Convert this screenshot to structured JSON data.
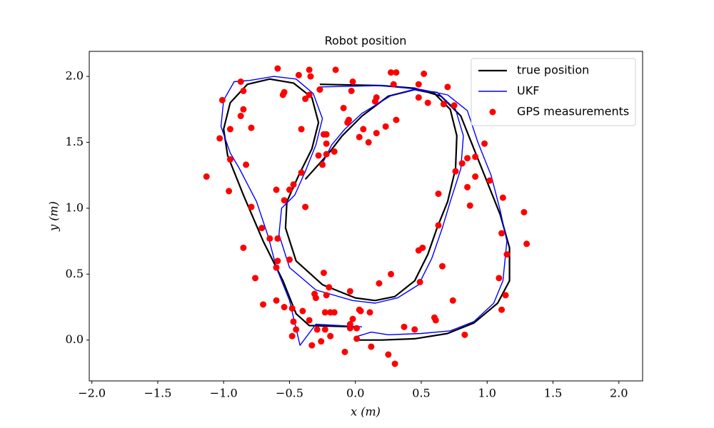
{
  "chart_data": {
    "type": "line",
    "title": "Robot position",
    "xlabel": "x (m)",
    "ylabel": "y (m)",
    "xlim": [
      -2.02,
      2.18
    ],
    "ylim": [
      -0.31,
      2.19
    ],
    "xticks": [
      {
        "value": -2.0,
        "label": "−2.0"
      },
      {
        "value": -1.5,
        "label": "−1.5"
      },
      {
        "value": -1.0,
        "label": "−1.0"
      },
      {
        "value": -0.5,
        "label": "−0.5"
      },
      {
        "value": 0.0,
        "label": "0.0"
      },
      {
        "value": 0.5,
        "label": "0.5"
      },
      {
        "value": 1.0,
        "label": "1.0"
      },
      {
        "value": 1.5,
        "label": "1.5"
      },
      {
        "value": 2.0,
        "label": "2.0"
      }
    ],
    "yticks": [
      {
        "value": 0.0,
        "label": "0.0"
      },
      {
        "value": 0.5,
        "label": "0.5"
      },
      {
        "value": 1.0,
        "label": "1.0"
      },
      {
        "value": 1.5,
        "label": "1.5"
      },
      {
        "value": 2.0,
        "label": "2.0"
      }
    ],
    "legend": "upper right",
    "series": [
      {
        "name": "true position",
        "color": "#000000",
        "kind": "line",
        "x": [
          0.0,
          -0.35,
          -0.45,
          -0.55,
          -0.7,
          -0.85,
          -0.97,
          -1.0,
          -0.95,
          -0.82,
          -0.65,
          -0.47,
          -0.33,
          -0.28,
          -0.33,
          -0.43,
          -0.52,
          -0.53,
          -0.45,
          -0.25,
          0.0,
          0.15,
          0.3,
          0.45,
          0.55,
          0.62,
          0.7,
          0.76,
          0.77,
          0.72,
          0.6,
          0.45,
          0.25,
          0.05,
          -0.1,
          -0.2,
          -0.38,
          null,
          -0.27,
          0.2,
          0.45,
          0.65,
          0.8,
          0.9,
          1.0,
          1.1,
          1.17,
          1.17,
          1.08,
          0.9,
          0.7,
          0.45,
          0.2,
          0.0
        ],
        "y": [
          0.1,
          0.11,
          0.2,
          0.45,
          0.75,
          1.1,
          1.4,
          1.6,
          1.8,
          1.94,
          1.98,
          1.95,
          1.84,
          1.65,
          1.45,
          1.25,
          1.05,
          0.85,
          0.6,
          0.42,
          0.32,
          0.3,
          0.33,
          0.45,
          0.65,
          0.85,
          1.05,
          1.3,
          1.55,
          1.75,
          1.87,
          1.9,
          1.85,
          1.7,
          1.55,
          1.42,
          1.22,
          null,
          1.94,
          1.93,
          1.91,
          1.85,
          1.7,
          1.45,
          1.2,
          0.95,
          0.7,
          0.45,
          0.28,
          0.13,
          0.05,
          0.01,
          0.0,
          0.0
        ]
      },
      {
        "name": "UKF",
        "color": "#0000ff",
        "kind": "line",
        "x": [
          0.05,
          -0.3,
          -0.42,
          -0.5,
          -0.6,
          -0.66,
          -0.75,
          -0.88,
          -0.95,
          -1.02,
          -1.0,
          -0.92,
          -0.8,
          -0.62,
          -0.45,
          -0.32,
          -0.25,
          -0.3,
          -0.38,
          -0.46,
          -0.56,
          -0.58,
          -0.5,
          -0.3,
          -0.02,
          0.15,
          0.32,
          0.48,
          0.58,
          0.66,
          0.72,
          0.8,
          0.82,
          0.76,
          0.62,
          0.45,
          0.28,
          0.05,
          -0.08,
          -0.18,
          -0.25,
          null,
          -0.28,
          0.2,
          0.5,
          0.7,
          0.85,
          0.93,
          1.03,
          1.1,
          1.15,
          1.12,
          1.05,
          0.9,
          0.72,
          0.5,
          0.25,
          0.12,
          0.02
        ],
        "y": [
          0.1,
          0.12,
          -0.04,
          0.3,
          0.55,
          0.78,
          1.05,
          1.3,
          1.42,
          1.62,
          1.82,
          1.96,
          1.97,
          2.0,
          1.98,
          1.87,
          1.68,
          1.48,
          1.28,
          1.1,
          1.0,
          0.8,
          0.55,
          0.38,
          0.3,
          0.28,
          0.32,
          0.42,
          0.62,
          0.85,
          1.05,
          1.3,
          1.55,
          1.75,
          1.88,
          1.9,
          1.86,
          1.72,
          1.6,
          1.48,
          1.34,
          null,
          1.92,
          1.93,
          1.9,
          1.86,
          1.74,
          1.5,
          1.25,
          0.98,
          0.75,
          0.45,
          0.28,
          0.14,
          0.07,
          0.05,
          0.04,
          0.06,
          0.03
        ]
      },
      {
        "name": "GPS measurements",
        "color": "#ff0000",
        "kind": "scatter",
        "x": [
          -1.13,
          -0.59,
          -0.87,
          -1.01,
          -0.85,
          -0.85,
          -0.87,
          -0.95,
          -0.79,
          -1.03,
          -0.95,
          -0.83,
          -0.96,
          -0.79,
          -0.71,
          -0.85,
          -0.65,
          -0.6,
          -0.54,
          -0.59,
          -0.76,
          -0.59,
          -0.5,
          -0.6,
          -0.7,
          -0.6,
          -0.54,
          -0.48,
          -0.47,
          -0.48,
          -0.45,
          -0.4,
          -0.35,
          -0.33,
          -0.29,
          -0.26,
          -0.19,
          -0.19,
          -0.16,
          -0.23,
          -0.31,
          -0.3,
          -0.22,
          -0.2,
          -0.24,
          -0.23,
          -0.08,
          -0.04,
          -0.04,
          -0.02,
          0.03,
          0.04,
          0.01,
          0.01,
          0.11,
          0.12,
          -0.04,
          0.18,
          0.27,
          0.25,
          0.3,
          0.37,
          0.45,
          0.49,
          0.48,
          0.51,
          0.6,
          0.61,
          0.66,
          0.74,
          0.83,
          0.63,
          0.63,
          0.85,
          0.87,
          0.76,
          0.91,
          0.81,
          0.85,
          0.91,
          0.98,
          1.02,
          1.12,
          1.11,
          1.15,
          1.09,
          1.14,
          1.11,
          1.28,
          1.3,
          0.27,
          0.31,
          0.52,
          0.7,
          0.75,
          0.67,
          0.55,
          0.48,
          0.48,
          0.29,
          0.16,
          0.15,
          0.31,
          0.23,
          0.16,
          0.06,
          0.03,
          0.1,
          -0.05,
          -0.06,
          -0.09,
          -0.02,
          -0.03,
          -0.15,
          -0.35,
          -0.34,
          -0.43,
          -0.54,
          -0.55,
          -0.38,
          -0.35,
          -0.27,
          -0.41,
          -0.24,
          -0.22,
          -0.22,
          -0.28,
          -0.22,
          -0.16,
          -0.25,
          -0.41,
          -0.47,
          -0.5,
          -0.38
        ],
        "y": [
          1.24,
          2.06,
          1.96,
          1.82,
          1.89,
          1.75,
          1.7,
          1.6,
          1.61,
          1.53,
          1.37,
          1.33,
          1.13,
          1.01,
          0.85,
          0.7,
          0.77,
          1.14,
          1.06,
          0.77,
          0.47,
          0.6,
          0.61,
          0.3,
          0.27,
          0.55,
          0.25,
          0.24,
          0.14,
          0.03,
          0.08,
          0.22,
          0.15,
          -0.04,
          0.08,
          -0.01,
          0.03,
          0.21,
          0.21,
          0.21,
          0.35,
          0.32,
          0.34,
          0.4,
          0.51,
          0.08,
          -0.09,
          0.12,
          0.09,
          0.16,
          0.23,
          0.22,
          0.09,
          0.01,
          0.21,
          -0.05,
          0.37,
          0.43,
          0.5,
          -0.11,
          -0.18,
          0.1,
          0.08,
          0.44,
          0.68,
          0.7,
          0.17,
          0.15,
          0.56,
          0.3,
          0.04,
          0.87,
          1.11,
          1.16,
          1.02,
          1.28,
          1.24,
          1.34,
          1.38,
          1.39,
          1.49,
          1.21,
          1.08,
          0.81,
          0.65,
          0.47,
          0.34,
          0.23,
          0.97,
          0.73,
          2.03,
          2.03,
          2.02,
          1.92,
          1.78,
          1.79,
          1.8,
          1.84,
          1.94,
          1.94,
          1.84,
          1.81,
          1.67,
          1.62,
          1.57,
          1.6,
          1.54,
          1.5,
          1.67,
          1.65,
          1.76,
          1.96,
          1.89,
          2.05,
          2.05,
          2.0,
          2.01,
          1.88,
          1.86,
          1.83,
          1.86,
          1.9,
          1.6,
          1.56,
          1.56,
          1.49,
          1.4,
          1.41,
          1.43,
          1.33,
          1.27,
          1.18,
          1.14,
          1.01
        ]
      }
    ]
  }
}
